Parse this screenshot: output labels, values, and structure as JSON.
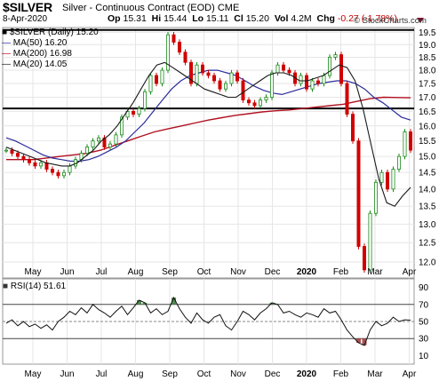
{
  "header": {
    "symbol": "$SILVER",
    "description": "Silver - Continuous Contract (EOD)  CME",
    "date": "8-Apr-2020",
    "op_label": "Op",
    "op": "15.31",
    "hi_label": "Hi",
    "hi": "15.44",
    "lo_label": "Lo",
    "lo": "15.11",
    "cl_label": "Cl",
    "cl": "15.20",
    "vol_label": "Vol",
    "vol": "4.2M",
    "chg_label": "Chg",
    "chg": "-0.27 (-1.78%)",
    "copyright": "© StockCharts.com",
    "chg_color": "#c00000"
  },
  "legend": {
    "main": "$SILVER (Daily) 15.20",
    "ma50": "MA(50) 16.20",
    "ma200": "MA(200) 16.98",
    "ma20": "MA(20) 14.05"
  },
  "rsi_label": "RSI(14) 51.61",
  "colors": {
    "candle_up": "#1a8a1a",
    "candle_down": "#d00000",
    "ma50": "#2b2b9a",
    "ma200": "#b01020",
    "ma20": "#1a1a1a",
    "rsi_fill": "#3f7f3f",
    "rsi_low_fill": "#a04040"
  },
  "chart_data": [
    {
      "type": "line",
      "subtype": "candlestick",
      "title": "$SILVER (Daily) 15.20",
      "x_labels": [
        "May",
        "Jun",
        "Jul",
        "Aug",
        "Sep",
        "Oct",
        "Nov",
        "Dec",
        "2020",
        "Feb",
        "Mar",
        "Apr"
      ],
      "y_ticks": [
        "19.5",
        "19.0",
        "18.5",
        "18.0",
        "17.5",
        "17.0",
        "16.5",
        "16.0",
        "15.5",
        "15.0",
        "14.5",
        "14.0",
        "13.5",
        "13.0",
        "12.5",
        "12.0"
      ],
      "ylim": [
        11.6,
        19.7
      ],
      "y_scale": "log",
      "grid": true,
      "horizontal_lines": [
        19.6,
        16.6
      ],
      "series": [
        {
          "name": "$SILVER (Daily) 15.20",
          "kind": "close",
          "values": [
            15.2,
            15.1,
            15.0,
            14.9,
            14.8,
            14.7,
            14.8,
            14.6,
            14.5,
            14.4,
            14.5,
            14.7,
            14.9,
            15.1,
            15.3,
            15.5,
            15.6,
            15.3,
            15.4,
            15.7,
            16.3,
            16.5,
            16.4,
            16.6,
            17.2,
            17.8,
            17.5,
            18.0,
            19.4,
            19.1,
            18.7,
            18.3,
            17.5,
            18.2,
            17.9,
            17.8,
            17.6,
            17.3,
            17.5,
            17.9,
            17.6,
            16.9,
            16.8,
            16.7,
            16.9,
            17.0,
            17.9,
            18.2,
            18.0,
            17.9,
            17.5,
            17.8,
            17.3,
            17.6,
            17.5,
            17.8,
            18.5,
            18.6,
            17.5,
            16.4,
            15.5,
            12.4,
            11.8,
            13.3,
            14.2,
            14.5,
            14.0,
            14.6,
            15.0,
            15.8,
            15.2
          ]
        },
        {
          "name": "MA(50) 16.20",
          "values": [
            15.6,
            15.5,
            15.35,
            15.2,
            15.05,
            14.95,
            14.9,
            14.85,
            14.85,
            14.9,
            15.0,
            15.15,
            15.3,
            15.5,
            15.8,
            16.1,
            16.5,
            16.9,
            17.3,
            17.6,
            17.8,
            17.9,
            18.0,
            18.0,
            17.9,
            17.8,
            17.6,
            17.4,
            17.25,
            17.15,
            17.1,
            17.2,
            17.3,
            17.4,
            17.5,
            17.55,
            17.6,
            17.6,
            17.5,
            17.3,
            17.0,
            16.8,
            16.55,
            16.3,
            16.2
          ]
        },
        {
          "name": "MA(200) 16.98",
          "values": [
            14.9,
            14.9,
            14.9,
            14.95,
            15.0,
            15.05,
            15.1,
            15.2,
            15.35,
            15.5,
            15.65,
            15.8,
            15.9,
            16.0,
            16.1,
            16.2,
            16.28,
            16.36,
            16.42,
            16.48,
            16.52,
            16.55,
            16.6,
            16.65,
            16.7,
            16.75,
            16.85,
            16.95,
            17.0,
            16.99,
            16.98
          ]
        },
        {
          "name": "MA(20) 14.05",
          "values": [
            15.3,
            15.2,
            15.1,
            15.0,
            14.9,
            14.8,
            14.75,
            14.7,
            14.7,
            14.8,
            15.0,
            15.2,
            15.5,
            15.7,
            16.0,
            16.4,
            16.8,
            17.3,
            17.8,
            18.2,
            18.3,
            18.1,
            17.9,
            17.7,
            17.5,
            17.3,
            17.2,
            17.1,
            17.0,
            17.0,
            17.2,
            17.4,
            17.6,
            17.8,
            17.9,
            17.9,
            17.8,
            17.6,
            17.6,
            17.7,
            17.8,
            18.0,
            18.2,
            18.1,
            17.6,
            16.6,
            15.4,
            14.3,
            13.6,
            13.5,
            13.8,
            14.05
          ]
        }
      ]
    },
    {
      "type": "line",
      "title": "RSI(14) 51.61",
      "x_labels": [
        "May",
        "Jun",
        "Jul",
        "Aug",
        "Sep",
        "Oct",
        "Nov",
        "Dec",
        "2020",
        "Feb",
        "Mar",
        "Apr"
      ],
      "y_ticks": [
        "90",
        "70",
        "50",
        "30",
        "10"
      ],
      "ylim": [
        0,
        100
      ],
      "horizontal_lines": [
        70,
        50,
        30
      ],
      "series": [
        {
          "name": "RSI(14) 51.61",
          "values": [
            48,
            52,
            45,
            50,
            44,
            47,
            42,
            46,
            40,
            50,
            55,
            62,
            58,
            66,
            60,
            70,
            64,
            60,
            55,
            62,
            68,
            58,
            66,
            75,
            72,
            60,
            65,
            58,
            62,
            78,
            65,
            55,
            48,
            60,
            52,
            48,
            55,
            58,
            45,
            40,
            50,
            62,
            58,
            52,
            60,
            65,
            72,
            70,
            60,
            62,
            58,
            55,
            60,
            58,
            55,
            65,
            60,
            62,
            52,
            40,
            32,
            25,
            22,
            40,
            50,
            45,
            48,
            55,
            50,
            52,
            51.61
          ]
        }
      ]
    }
  ]
}
